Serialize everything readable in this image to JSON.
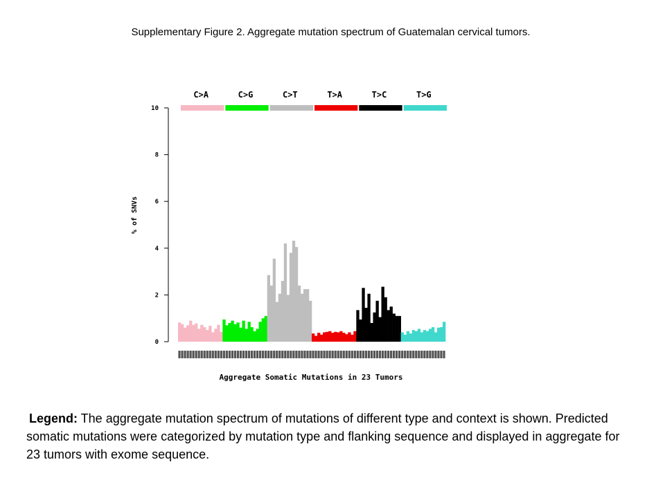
{
  "figure_title": "Supplementary Figure 2. Aggregate mutation spectrum of Guatemalan cervical tumors.",
  "legend": {
    "label": "Legend:",
    "text": " The aggregate mutation spectrum of mutations of different type and context is shown. Predicted somatic mutations were categorized by mutation type and flanking sequence and displayed in aggregate for 23 tumors with exome sequence."
  },
  "chart_data": {
    "type": "bar",
    "title": "",
    "xlabel": "Aggregate Somatic Mutations in 23 Tumors",
    "ylabel": "% of SNVs",
    "ylim": [
      0,
      10
    ],
    "yticks": [
      0,
      2,
      4,
      6,
      8,
      10
    ],
    "grid": false,
    "legend_position": "top",
    "series": [
      {
        "name": "C>A",
        "color": "#f7b8c4",
        "values": [
          0.82,
          0.75,
          0.6,
          0.7,
          0.9,
          0.72,
          0.78,
          0.55,
          0.72,
          0.62,
          0.5,
          0.68,
          0.4,
          0.55,
          0.72,
          0.42
        ]
      },
      {
        "name": "C>G",
        "color": "#00ee00",
        "values": [
          0.95,
          0.7,
          0.8,
          0.9,
          0.75,
          0.82,
          0.6,
          0.9,
          0.55,
          0.85,
          0.62,
          0.45,
          0.55,
          0.85,
          1.0,
          1.1
        ]
      },
      {
        "name": "C>T",
        "color": "#bebebe",
        "values": [
          2.85,
          2.4,
          3.55,
          1.7,
          2.05,
          2.6,
          4.2,
          2.0,
          3.8,
          4.32,
          4.05,
          2.4,
          2.05,
          2.25,
          2.25,
          1.75
        ]
      },
      {
        "name": "T>A",
        "color": "#ee0000",
        "values": [
          0.35,
          0.25,
          0.38,
          0.3,
          0.4,
          0.42,
          0.45,
          0.38,
          0.42,
          0.4,
          0.45,
          0.38,
          0.32,
          0.4,
          0.3,
          0.45
        ]
      },
      {
        "name": "T>C",
        "color": "#000000",
        "values": [
          1.35,
          0.95,
          2.3,
          1.45,
          2.05,
          0.8,
          1.25,
          1.75,
          1.05,
          2.35,
          1.9,
          1.35,
          1.5,
          1.2,
          1.1,
          1.1
        ]
      },
      {
        "name": "T>G",
        "color": "#40d8cc",
        "values": [
          0.4,
          0.3,
          0.45,
          0.35,
          0.5,
          0.45,
          0.55,
          0.4,
          0.5,
          0.45,
          0.55,
          0.62,
          0.4,
          0.6,
          0.62,
          0.85
        ]
      }
    ]
  }
}
